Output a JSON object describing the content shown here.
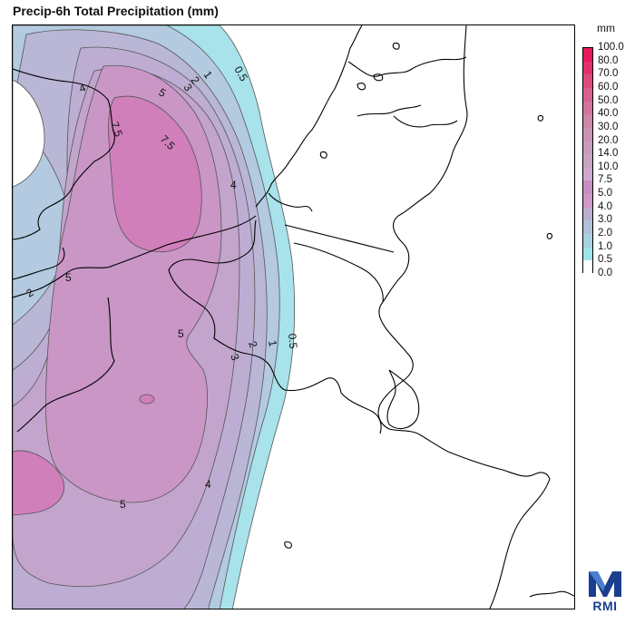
{
  "title": "Precip-6h Total Precipitation (mm)",
  "legend": {
    "unit": "mm",
    "levels": [
      "100.0",
      "80.0",
      "70.0",
      "60.0",
      "50.0",
      "40.0",
      "30.0",
      "20.0",
      "14.0",
      "10.0",
      "7.5",
      "5.0",
      "4.0",
      "3.0",
      "2.0",
      "1.0",
      "0.5",
      "0.0"
    ],
    "colors": [
      "#e8185a",
      "#e3306b",
      "#de4a7c",
      "#d9608c",
      "#d4739b",
      "#cf85a8",
      "#ca93b3",
      "#c79dbb",
      "#c8a3c2",
      "#cfa7cf",
      "#c88ec4",
      "#cf98c8",
      "#baaed2",
      "#afc1db",
      "#a6d2e2",
      "#9fe3ea",
      "#b5f0f2",
      "#ffffff"
    ]
  },
  "contours": {
    "labels": [
      {
        "text": "0.5",
        "color": "contour"
      },
      {
        "text": "1",
        "color": "contour"
      },
      {
        "text": "2",
        "color": "contour"
      },
      {
        "text": "3",
        "color": "contour"
      },
      {
        "text": "4",
        "color": "contour"
      },
      {
        "text": "5",
        "color": "contour"
      },
      {
        "text": "7.5",
        "color": "contour"
      },
      {
        "text": "7.5",
        "color": "contour"
      },
      {
        "text": "4",
        "color": "contour"
      },
      {
        "text": "5",
        "color": "contour"
      },
      {
        "text": "2",
        "color": "contour"
      },
      {
        "text": "5",
        "color": "contour"
      },
      {
        "text": "3",
        "color": "contour"
      },
      {
        "text": "2",
        "color": "contour"
      },
      {
        "text": "1",
        "color": "contour"
      },
      {
        "text": "0.5",
        "color": "contour"
      },
      {
        "text": "4",
        "color": "contour"
      },
      {
        "text": "5",
        "color": "contour"
      }
    ]
  },
  "logo": {
    "text": "RMI",
    "color": "#1a3f8f"
  }
}
